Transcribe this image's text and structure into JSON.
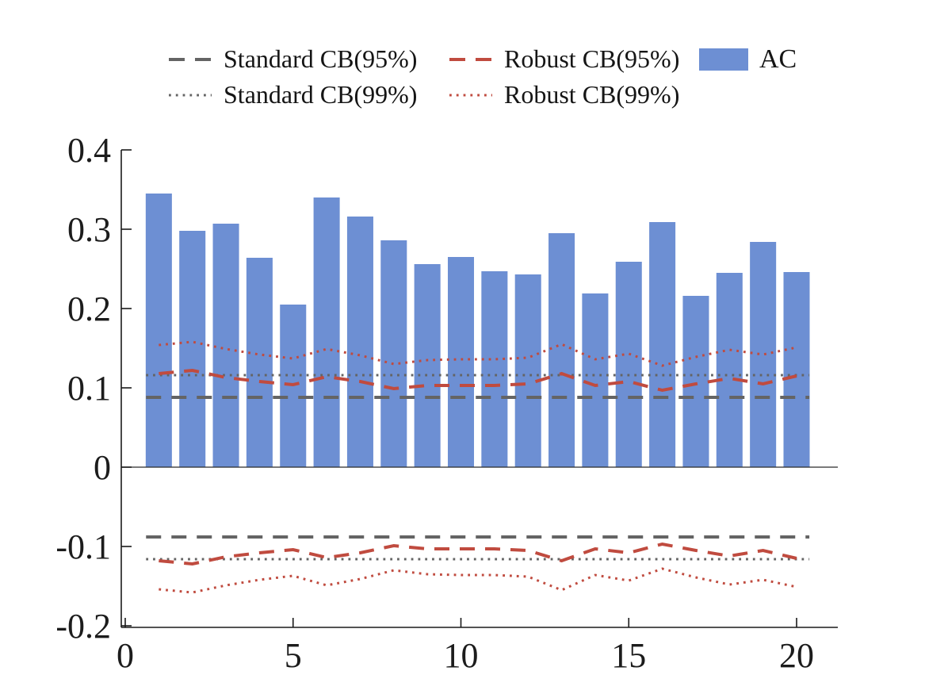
{
  "figure": {
    "kind": "autocorrelation plot with robust and standard confidence bands",
    "background": "#ffffff"
  },
  "colors": {
    "bar_blue": "#6D8FD3",
    "robust_red": "#C04B3F",
    "standard_gray": "#646464",
    "axis_black": "#1a1a1a",
    "text_black": "#1c1c1c"
  },
  "legend": {
    "items": [
      {
        "label": "Standard CB(95%)",
        "style": "dashed",
        "color": "#646464"
      },
      {
        "label": "Standard CB(99%)",
        "style": "dotted",
        "color": "#646464"
      },
      {
        "label": "Robust CB(95%)",
        "style": "dashed",
        "color": "#C04B3F"
      },
      {
        "label": "Robust CB(99%)",
        "style": "dotted",
        "color": "#C04B3F"
      },
      {
        "label": "AC",
        "style": "fill",
        "color": "#6D8FD3"
      }
    ]
  },
  "chart_data": {
    "type": "bar",
    "title": "",
    "xlabel": "",
    "ylabel": "",
    "x": [
      1,
      2,
      3,
      4,
      5,
      6,
      7,
      8,
      9,
      10,
      11,
      12,
      13,
      14,
      15,
      16,
      17,
      18,
      19,
      20
    ],
    "series": [
      {
        "name": "AC",
        "type": "bar",
        "color": "#6D8FD3",
        "values": [
          0.345,
          0.298,
          0.307,
          0.264,
          0.205,
          0.34,
          0.316,
          0.286,
          0.256,
          0.265,
          0.247,
          0.243,
          0.295,
          0.219,
          0.259,
          0.309,
          0.216,
          0.245,
          0.284,
          0.246
        ]
      },
      {
        "name": "Standard CB(95%)",
        "type": "line-dashed",
        "color": "#646464",
        "symmetric": true,
        "constant": 0.088
      },
      {
        "name": "Standard CB(99%)",
        "type": "line-dotted",
        "color": "#646464",
        "symmetric": true,
        "constant": 0.116
      },
      {
        "name": "Robust CB(95%)",
        "type": "line-dashed",
        "color": "#C04B3F",
        "symmetric": true,
        "values": [
          0.118,
          0.122,
          0.113,
          0.108,
          0.104,
          0.114,
          0.108,
          0.099,
          0.103,
          0.103,
          0.103,
          0.105,
          0.118,
          0.103,
          0.108,
          0.097,
          0.105,
          0.112,
          0.105,
          0.115
        ]
      },
      {
        "name": "Robust CB(99%)",
        "type": "line-dotted",
        "color": "#C04B3F",
        "symmetric": true,
        "values": [
          0.154,
          0.158,
          0.149,
          0.142,
          0.137,
          0.149,
          0.141,
          0.13,
          0.135,
          0.136,
          0.136,
          0.138,
          0.155,
          0.136,
          0.143,
          0.128,
          0.139,
          0.148,
          0.142,
          0.151
        ]
      }
    ],
    "xticks": [
      0,
      5,
      10,
      15,
      20
    ],
    "yticks": [
      -0.2,
      -0.1,
      0,
      0.1,
      0.2,
      0.3,
      0.4
    ],
    "xlim": [
      -0.12,
      21.1
    ],
    "ylim": [
      -0.2,
      0.4
    ],
    "grid": false,
    "legend_position": "top",
    "bar_width_units": 0.78
  }
}
